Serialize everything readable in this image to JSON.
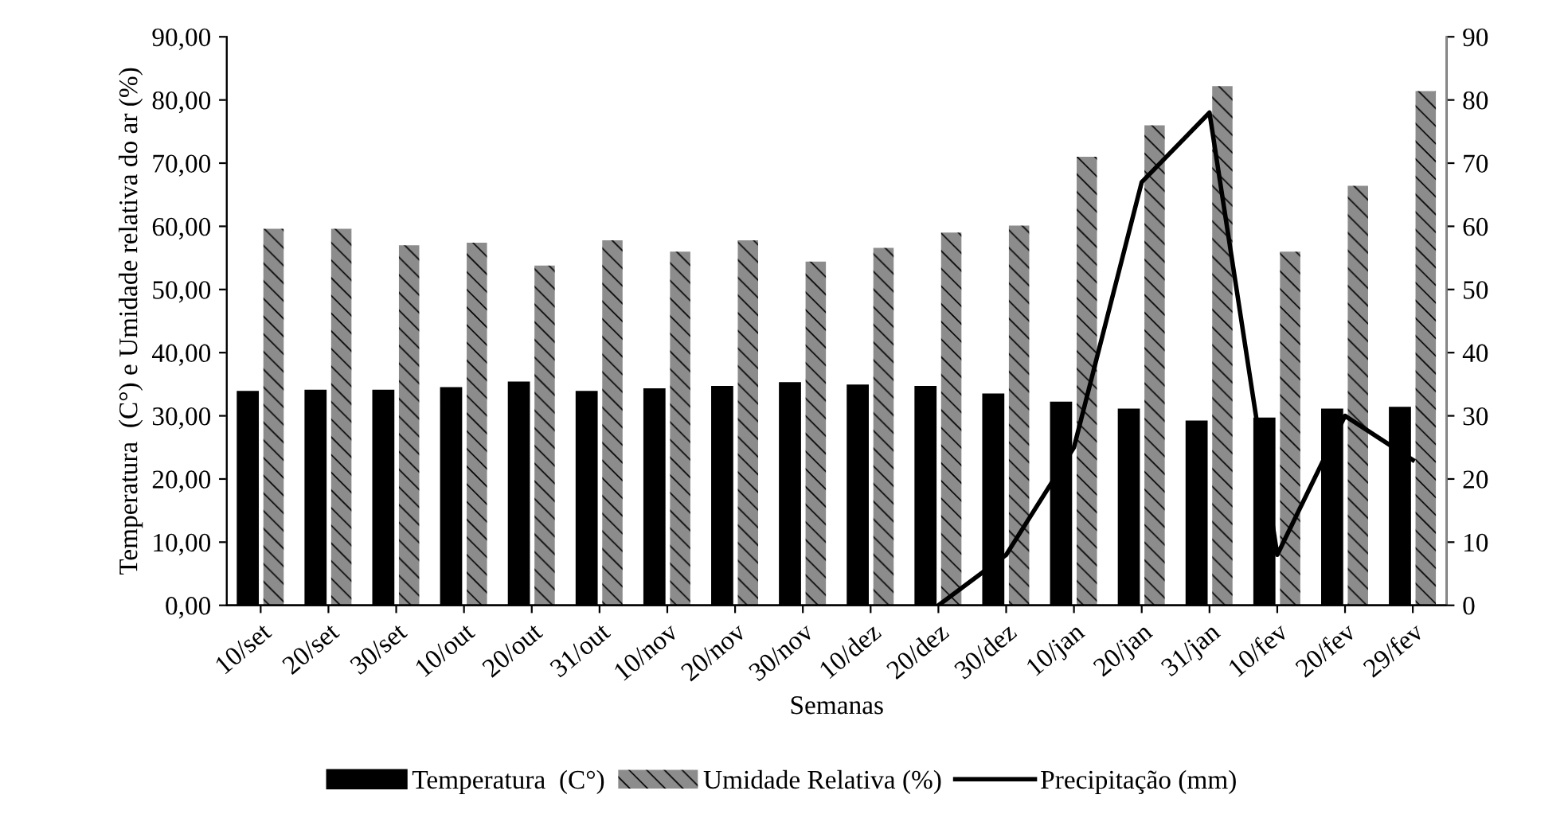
{
  "chart_data": {
    "type": "bar",
    "xlabel": "Semanas",
    "ylabel": "Temperatura  (C°) e Umidade relativa do ar (%)",
    "categories": [
      "10/set",
      "20/set",
      "30/set",
      "10/out",
      "20/out",
      "31/out",
      "10/nov",
      "20/nov",
      "30/nov",
      "10/dez",
      "20/dez",
      "30/dez",
      "10/jan",
      "20/jan",
      "31/jan",
      "10/fev",
      "20/fev",
      "29/fev"
    ],
    "series": [
      {
        "name": "Temperatura  (C°)",
        "color": "#000000",
        "values": [
          33.8,
          34.0,
          34.0,
          34.4,
          35.3,
          33.8,
          34.2,
          34.6,
          35.2,
          34.8,
          34.6,
          33.4,
          32.1,
          31.0,
          29.1,
          29.6,
          31.0,
          31.3
        ]
      },
      {
        "name": "Umidade Relativa (%)",
        "color": "#8c8c8c",
        "values": [
          59.6,
          59.6,
          57.0,
          57.4,
          53.8,
          57.8,
          56.0,
          57.8,
          54.4,
          56.6,
          59.0,
          60.1,
          71.0,
          76.0,
          82.2,
          56.0,
          66.4,
          81.4
        ]
      },
      {
        "name": "Precipitação (mm)",
        "type": "line",
        "axis": "y2",
        "color": "#000000",
        "values": [
          null,
          null,
          null,
          null,
          null,
          null,
          null,
          null,
          null,
          null,
          0,
          8,
          25,
          67,
          78,
          8,
          30,
          23
        ]
      }
    ],
    "ylim": [
      0,
      90
    ],
    "yticks": [
      {
        "value": 0,
        "label": "0,00"
      },
      {
        "value": 10,
        "label": "10,00"
      },
      {
        "value": 20,
        "label": "20,00"
      },
      {
        "value": 30,
        "label": "30,00"
      },
      {
        "value": 40,
        "label": "40,00"
      },
      {
        "value": 50,
        "label": "50,00"
      },
      {
        "value": 60,
        "label": "60,00"
      },
      {
        "value": 70,
        "label": "70,00"
      },
      {
        "value": 80,
        "label": "80,00"
      },
      {
        "value": 90,
        "label": "90,00"
      }
    ],
    "y2lim": [
      0,
      90
    ],
    "y2ticks": [
      0,
      10,
      20,
      30,
      40,
      50,
      60,
      70,
      80,
      90
    ],
    "legend": "bottom",
    "grid": false,
    "marker": "none",
    "line_style": "solid"
  }
}
